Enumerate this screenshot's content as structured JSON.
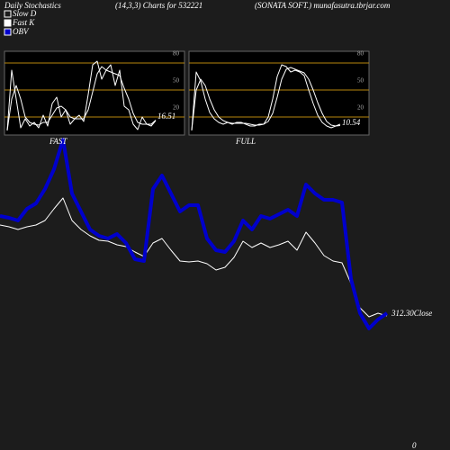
{
  "header": {
    "title": "Daily Stochastics",
    "subtitle": "(14,3,3) Charts for 532221",
    "source": "(SONATA SOFT.) munafasutra.tbrjar.com",
    "footer": "0"
  },
  "chart_data": [
    {
      "type": "line",
      "annotation": "312.30Close",
      "ylim": [
        0,
        500
      ],
      "categories": [
        null,
        null,
        null,
        null,
        null,
        null,
        null,
        null,
        null,
        null,
        null,
        null,
        null,
        null,
        null,
        null,
        null,
        null,
        null,
        null,
        null,
        null,
        null,
        null,
        null,
        null,
        null,
        null,
        null,
        null,
        null,
        null,
        null,
        null,
        null,
        null,
        null,
        null,
        null,
        null,
        null,
        null,
        null,
        null
      ],
      "series": [
        {
          "color": "#ffffff",
          "width": 1,
          "values": [
            250,
            248,
            245,
            248,
            250,
            255,
            268,
            280,
            255,
            245,
            238,
            233,
            232,
            228,
            226,
            220,
            215,
            230,
            235,
            222,
            210,
            209,
            210,
            207,
            200,
            203,
            214,
            232,
            225,
            230,
            225,
            228,
            232,
            222,
            242,
            230,
            216,
            210,
            208,
            185,
            158,
            148,
            152,
            149
          ]
        },
        {
          "name": "OBV",
          "color": "#0000cc",
          "width": 4,
          "values": [
            260,
            258,
            255,
            268,
            274,
            290,
            312,
            345,
            285,
            265,
            245,
            238,
            235,
            240,
            230,
            212,
            210,
            290,
            305,
            285,
            265,
            272,
            272,
            235,
            222,
            220,
            232,
            255,
            245,
            260,
            257,
            262,
            267,
            260,
            295,
            285,
            278,
            278,
            275,
            190,
            152,
            135,
            145,
            152
          ]
        }
      ]
    },
    {
      "type": "line",
      "title": "FAST",
      "annotation": "16.51",
      "ylim": [
        0,
        100
      ],
      "yticks": [
        20,
        50,
        80
      ],
      "categories": [
        null,
        null,
        null,
        null,
        null,
        null,
        null,
        null,
        null,
        null,
        null,
        null,
        null,
        null,
        null,
        null,
        null,
        null,
        null,
        null,
        null,
        null,
        null,
        null,
        null,
        null,
        null,
        null,
        null,
        null,
        null,
        null,
        null,
        null
      ],
      "series": [
        {
          "name": "Fast K",
          "color": "#ffffff",
          "values": [
            5,
            72,
            40,
            8,
            18,
            10,
            14,
            8,
            22,
            10,
            35,
            42,
            20,
            28,
            12,
            18,
            22,
            15,
            45,
            78,
            82,
            62,
            72,
            78,
            55,
            72,
            32,
            28,
            12,
            6,
            20,
            12,
            10,
            16
          ]
        },
        {
          "name": "Slow D",
          "color": "#ffffff",
          "values": [
            5,
            40,
            55,
            40,
            20,
            14,
            12,
            11,
            14,
            14,
            22,
            30,
            32,
            28,
            20,
            18,
            18,
            18,
            28,
            48,
            68,
            76,
            72,
            70,
            68,
            66,
            52,
            40,
            24,
            14,
            12,
            12,
            12,
            16.51
          ]
        }
      ]
    },
    {
      "type": "line",
      "title": "FULL",
      "annotation": "10.54",
      "ylim": [
        0,
        100
      ],
      "yticks": [
        20,
        50,
        80
      ],
      "categories": [
        null,
        null,
        null,
        null,
        null,
        null,
        null,
        null,
        null,
        null,
        null,
        null,
        null,
        null,
        null,
        null,
        null,
        null,
        null,
        null,
        null,
        null,
        null,
        null,
        null,
        null,
        null,
        null,
        null,
        null,
        null,
        null,
        null,
        null
      ],
      "series": [
        {
          "color": "#ffffff",
          "values": [
            5,
            70,
            60,
            40,
            25,
            18,
            14,
            12,
            14,
            12,
            14,
            14,
            12,
            10,
            10,
            12,
            12,
            20,
            40,
            65,
            78,
            76,
            70,
            72,
            70,
            66,
            50,
            35,
            22,
            14,
            10,
            8,
            10,
            12
          ]
        },
        {
          "color": "#ffffff",
          "values": [
            5,
            50,
            62,
            55,
            40,
            28,
            20,
            16,
            14,
            13,
            13,
            13,
            13,
            12,
            11,
            11,
            12,
            15,
            24,
            42,
            62,
            73,
            75,
            73,
            71,
            69,
            62,
            50,
            36,
            24,
            15,
            11,
            10,
            10.54
          ]
        }
      ]
    }
  ]
}
